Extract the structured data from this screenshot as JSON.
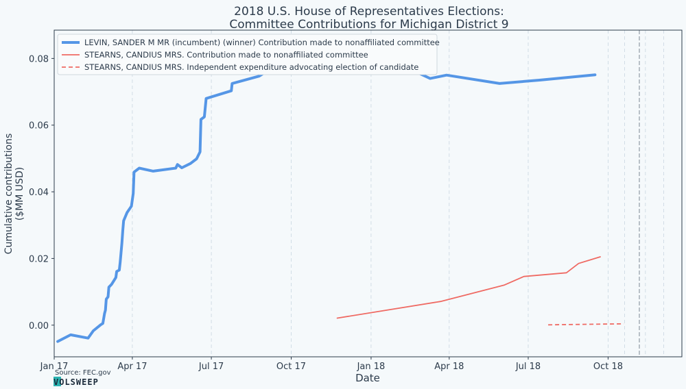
{
  "chart_data": {
    "type": "line",
    "title_lines": [
      "2018 U.S. House of Representatives Elections:",
      "Committee Contributions for Michigan District 9"
    ],
    "xlabel": "Date",
    "ylabel_lines": [
      "Cumulative contributions",
      "($MM USD)"
    ],
    "x_range": [
      "2017-01-01",
      "2018-12-25"
    ],
    "ylim": [
      -0.0095,
      0.0885
    ],
    "x_ticks": [
      {
        "date": "2017-01-01",
        "label": "Jan 17"
      },
      {
        "date": "2017-04-01",
        "label": "Apr 17"
      },
      {
        "date": "2017-07-01",
        "label": "Jul 17"
      },
      {
        "date": "2017-10-01",
        "label": "Oct 17"
      },
      {
        "date": "2018-01-01",
        "label": "Jan 18"
      },
      {
        "date": "2018-04-01",
        "label": "Apr 18"
      },
      {
        "date": "2018-07-01",
        "label": "Jul 18"
      },
      {
        "date": "2018-10-01",
        "label": "Oct 18"
      }
    ],
    "y_ticks": [
      {
        "value": 0.0,
        "label": "0.00"
      },
      {
        "value": 0.02,
        "label": "0.02"
      },
      {
        "value": 0.04,
        "label": "0.04"
      },
      {
        "value": 0.06,
        "label": "0.06"
      },
      {
        "value": 0.08,
        "label": "0.08"
      }
    ],
    "grid": {
      "x": true,
      "y": false
    },
    "minor_x_gridlines": [
      "2018-10-20",
      "2018-11-13",
      "2018-12-04"
    ],
    "election_line": "2018-11-06",
    "legend_position": "top-left",
    "series": [
      {
        "name": "LEVIN, SANDER M MR (incumbent) (winner) Contribution made to nonaffiliated committee",
        "color": "#5596e6",
        "style": "solid-thick",
        "points": [
          [
            "2017-01-05",
            -0.0049
          ],
          [
            "2017-01-20",
            -0.0029
          ],
          [
            "2017-02-09",
            -0.0039
          ],
          [
            "2017-02-15",
            -0.0017
          ],
          [
            "2017-02-24",
            0.0002
          ],
          [
            "2017-02-26",
            0.0005
          ],
          [
            "2017-02-28",
            0.0035
          ],
          [
            "2017-03-01",
            0.0045
          ],
          [
            "2017-03-02",
            0.0078
          ],
          [
            "2017-03-04",
            0.0085
          ],
          [
            "2017-03-05",
            0.0114
          ],
          [
            "2017-03-08",
            0.0122
          ],
          [
            "2017-03-13",
            0.0143
          ],
          [
            "2017-03-14",
            0.0161
          ],
          [
            "2017-03-17",
            0.0165
          ],
          [
            "2017-03-18",
            0.0189
          ],
          [
            "2017-03-19",
            0.0216
          ],
          [
            "2017-03-20",
            0.0246
          ],
          [
            "2017-03-21",
            0.0284
          ],
          [
            "2017-03-22",
            0.0313
          ],
          [
            "2017-03-26",
            0.0338
          ],
          [
            "2017-03-31",
            0.0357
          ],
          [
            "2017-04-02",
            0.0395
          ],
          [
            "2017-04-03",
            0.0459
          ],
          [
            "2017-04-06",
            0.0465
          ],
          [
            "2017-04-09",
            0.0471
          ],
          [
            "2017-04-25",
            0.0462
          ],
          [
            "2017-05-21",
            0.0471
          ],
          [
            "2017-05-23",
            0.0482
          ],
          [
            "2017-05-28",
            0.0472
          ],
          [
            "2017-06-07",
            0.0485
          ],
          [
            "2017-06-14",
            0.0499
          ],
          [
            "2017-06-18",
            0.052
          ],
          [
            "2017-06-19",
            0.0617
          ],
          [
            "2017-06-23",
            0.0625
          ],
          [
            "2017-06-25",
            0.068
          ],
          [
            "2017-07-24",
            0.0703
          ],
          [
            "2017-07-25",
            0.0725
          ],
          [
            "2017-08-25",
            0.0747
          ],
          [
            "2017-09-14",
            0.078
          ],
          [
            "2017-10-05",
            0.08
          ],
          [
            "2017-11-03",
            0.082
          ],
          [
            "2017-12-03",
            0.083
          ],
          [
            "2018-01-17",
            0.0812
          ],
          [
            "2018-02-10",
            0.0774
          ],
          [
            "2018-03-10",
            0.074
          ],
          [
            "2018-03-29",
            0.075
          ],
          [
            "2018-05-29",
            0.0725
          ],
          [
            "2018-07-14",
            0.0735
          ],
          [
            "2018-09-16",
            0.0751
          ]
        ]
      },
      {
        "name": "STEARNS, CANDIUS MRS. Contribution made to nonaffiliated committee",
        "color": "#ef6a63",
        "style": "solid",
        "points": [
          [
            "2017-11-23",
            0.0021
          ],
          [
            "2018-03-22",
            0.0071
          ],
          [
            "2018-06-03",
            0.012
          ],
          [
            "2018-06-26",
            0.0146
          ],
          [
            "2018-08-14",
            0.0157
          ],
          [
            "2018-08-28",
            0.0185
          ],
          [
            "2018-09-22",
            0.0205
          ]
        ]
      },
      {
        "name": "STEARNS, CANDIUS MRS. Independent expenditure advocating election of candidate",
        "color": "#ef6a63",
        "style": "dashed",
        "points": [
          [
            "2018-07-24",
            0.0001
          ],
          [
            "2018-10-19",
            0.0004
          ]
        ]
      }
    ]
  },
  "source": "Source: FEC.gov",
  "logo": "VOLSWEEP",
  "colors": {
    "background": "#f5f9fb",
    "axis": "#2b3a4a",
    "grid": "#c8d6e0",
    "election_line": "#a9b2ba"
  }
}
